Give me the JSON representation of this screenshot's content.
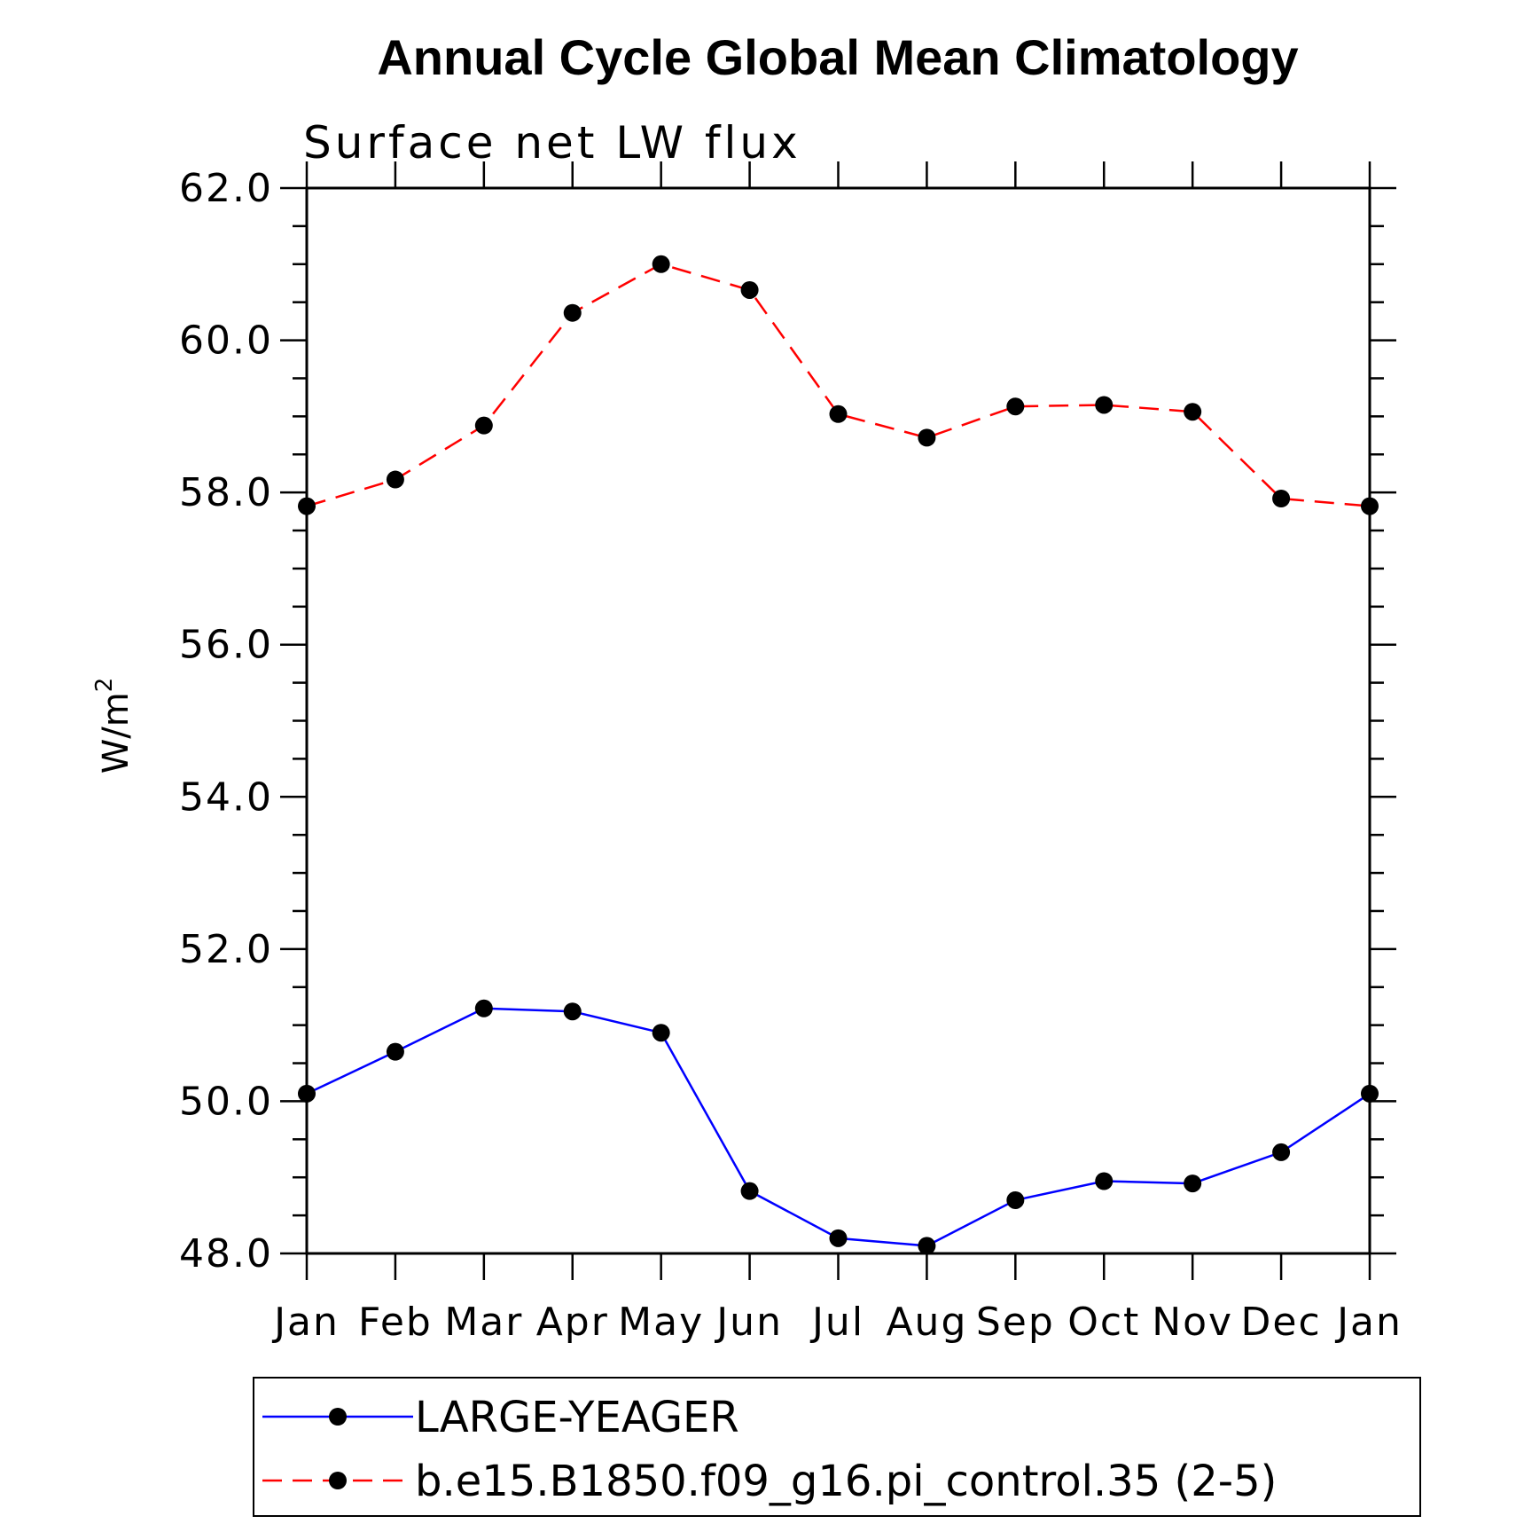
{
  "chart_data": {
    "type": "line",
    "title": "Annual Cycle Global Mean Climatology",
    "subtitle": "Surface net LW flux",
    "ylabel": "W/m",
    "ylabel_sup": "2",
    "ylim": [
      48.0,
      62.0
    ],
    "yticks": [
      "48.0",
      "50.0",
      "52.0",
      "54.0",
      "56.0",
      "58.0",
      "60.0",
      "62.0"
    ],
    "categories": [
      "Jan",
      "Feb",
      "Mar",
      "Apr",
      "May",
      "Jun",
      "Jul",
      "Aug",
      "Sep",
      "Oct",
      "Nov",
      "Dec",
      "Jan"
    ],
    "grid": false,
    "legend_position": "bottom",
    "series": [
      {
        "name": "LARGE-YEAGER",
        "color": "#0000ff",
        "dash": "solid",
        "marker": "filled-circle",
        "values": [
          50.1,
          50.65,
          51.22,
          51.18,
          50.9,
          48.82,
          48.2,
          48.1,
          48.7,
          48.95,
          48.92,
          49.33,
          50.1
        ]
      },
      {
        "name": "b.e15.B1850.f09_g16.pi_control.35 (2-5)",
        "color": "#ff0000",
        "dash": "dashed",
        "marker": "filled-circle",
        "values": [
          57.82,
          58.17,
          58.88,
          60.36,
          61.0,
          60.66,
          59.03,
          58.72,
          59.13,
          59.15,
          59.06,
          57.92,
          57.82
        ]
      }
    ]
  }
}
